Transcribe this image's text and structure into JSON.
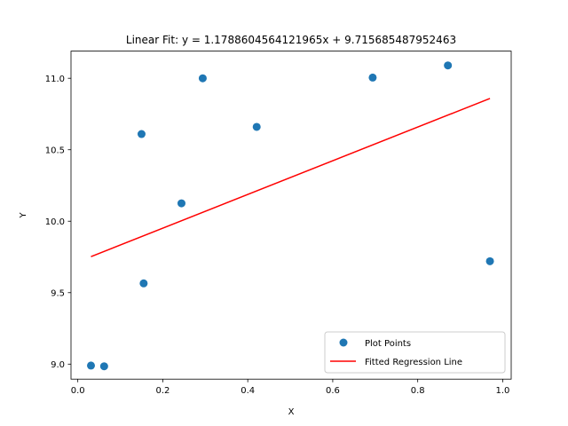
{
  "chart_data": {
    "type": "scatter",
    "title": "Linear Fit: y = 1.1788604564121965x + 9.715685487952463",
    "xlabel": "X",
    "ylabel": "Y",
    "xlim": [
      -0.016,
      1.02
    ],
    "ylim": [
      8.895,
      11.19
    ],
    "xticks": [
      0.0,
      0.2,
      0.4,
      0.6,
      0.8,
      1.0
    ],
    "xtick_labels": [
      "0.0",
      "0.2",
      "0.4",
      "0.6",
      "0.8",
      "1.0"
    ],
    "yticks": [
      9.0,
      9.5,
      10.0,
      10.5,
      11.0
    ],
    "ytick_labels": [
      "9.0",
      "9.5",
      "10.0",
      "10.5",
      "11.0"
    ],
    "grid": false,
    "legend_position": "lower-right",
    "series": [
      {
        "name": "Plot Points",
        "kind": "scatter",
        "color": "#1f77b4",
        "x": [
          0.031,
          0.062,
          0.15,
          0.155,
          0.244,
          0.294,
          0.421,
          0.694,
          0.871,
          0.97
        ],
        "y": [
          8.99,
          8.985,
          10.61,
          9.565,
          10.125,
          11.0,
          10.66,
          11.005,
          11.09,
          9.72
        ]
      },
      {
        "name": "Fitted Regression Line",
        "kind": "line",
        "color": "#ff0000",
        "x": [
          0.031,
          0.97
        ],
        "y": [
          9.752,
          10.859
        ]
      }
    ]
  }
}
